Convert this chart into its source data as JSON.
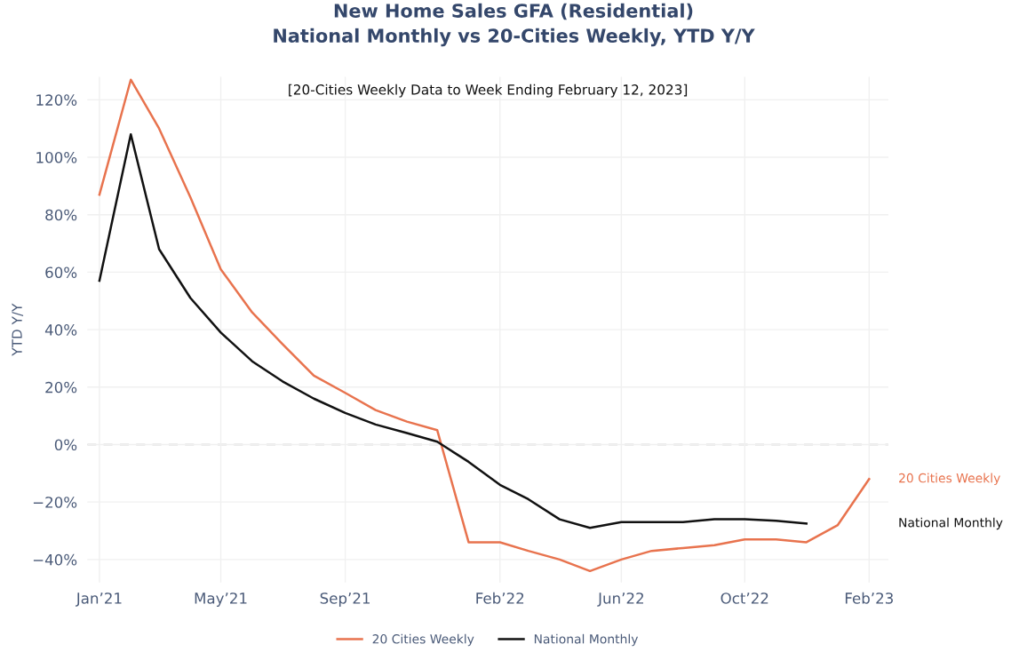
{
  "chart_data": {
    "type": "line",
    "title": "New Home Sales GFA (Residential)\nNational Monthly vs 20-Cities Weekly, YTD Y/Y",
    "subtitle": "[20-Cities Weekly Data to Week Ending February 12, 2023]",
    "ylabel": "YTD Y/Y",
    "x": [
      "2021-01",
      "2021-02",
      "2021-03",
      "2021-04",
      "2021-05",
      "2021-06",
      "2021-07",
      "2021-08",
      "2021-09",
      "2021-10",
      "2021-11",
      "2021-12",
      "2022-01",
      "2022-02",
      "2022-03",
      "2022-04",
      "2022-05",
      "2022-06",
      "2022-07",
      "2022-08",
      "2022-09",
      "2022-10",
      "2022-11",
      "2022-12",
      "2023-01",
      "2023-02"
    ],
    "series": [
      {
        "name": "20 Cities Weekly",
        "color": "#e8734e",
        "values": [
          87,
          127,
          110,
          86,
          61,
          46,
          35,
          24,
          18,
          12,
          8,
          5,
          -34,
          -34,
          -37,
          -40,
          -44,
          -40,
          -37,
          -36,
          -35,
          -33,
          -33,
          -34,
          -28,
          -12
        ]
      },
      {
        "name": "National Monthly",
        "color": "#111111",
        "values": [
          57,
          108,
          68,
          51,
          39,
          29,
          22,
          16,
          11,
          7,
          4,
          1,
          -6,
          -14,
          -19,
          -26,
          -29,
          -27,
          -27,
          -27,
          -26,
          -26,
          -26.5,
          -27.5,
          null,
          null
        ]
      }
    ],
    "xlim": [
      "2020-12-20",
      "2023-02-20"
    ],
    "xticks": [
      {
        "value": "2021-01",
        "label": "Jan’21"
      },
      {
        "value": "2021-05",
        "label": "May’21"
      },
      {
        "value": "2021-09",
        "label": "Sep’21"
      },
      {
        "value": "2022-02",
        "label": "Feb’22"
      },
      {
        "value": "2022-06",
        "label": "Jun’22"
      },
      {
        "value": "2022-10",
        "label": "Oct’22"
      },
      {
        "value": "2023-02",
        "label": "Feb’23"
      }
    ],
    "ylim": [
      -48,
      128
    ],
    "yticks": [
      {
        "value": -40,
        "label": "−40%"
      },
      {
        "value": -20,
        "label": "−20%"
      },
      {
        "value": 0,
        "label": "0%"
      },
      {
        "value": 20,
        "label": "20%"
      },
      {
        "value": 40,
        "label": "40%"
      },
      {
        "value": 60,
        "label": "60%"
      },
      {
        "value": 80,
        "label": "80%"
      },
      {
        "value": 100,
        "label": "100%"
      },
      {
        "value": 120,
        "label": "120%"
      }
    ],
    "ref_lines": [
      {
        "axis": "y",
        "value": 0,
        "color": "#aaaaaa",
        "line_style": "dashed"
      }
    ],
    "grid": true,
    "legend": "bottom",
    "marker": "none",
    "line_style": "solid"
  }
}
